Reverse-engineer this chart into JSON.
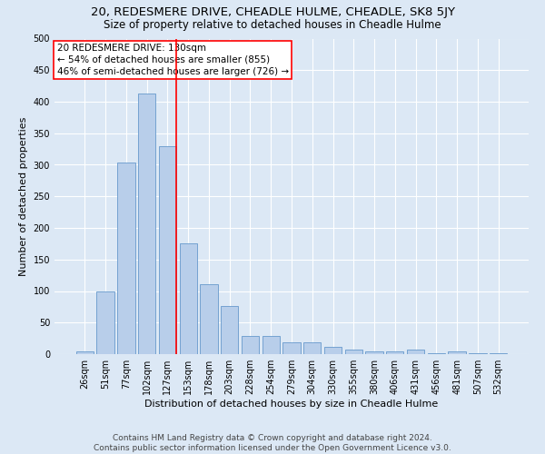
{
  "title": "20, REDESMERE DRIVE, CHEADLE HULME, CHEADLE, SK8 5JY",
  "subtitle": "Size of property relative to detached houses in Cheadle Hulme",
  "xlabel": "Distribution of detached houses by size in Cheadle Hulme",
  "ylabel": "Number of detached properties",
  "bar_labels": [
    "26sqm",
    "51sqm",
    "77sqm",
    "102sqm",
    "127sqm",
    "153sqm",
    "178sqm",
    "203sqm",
    "228sqm",
    "254sqm",
    "279sqm",
    "304sqm",
    "330sqm",
    "355sqm",
    "380sqm",
    "406sqm",
    "431sqm",
    "456sqm",
    "481sqm",
    "507sqm",
    "532sqm"
  ],
  "bar_values": [
    5,
    99,
    304,
    413,
    330,
    175,
    111,
    76,
    29,
    29,
    18,
    18,
    11,
    7,
    4,
    4,
    7,
    2,
    4,
    2,
    2
  ],
  "bar_color": "#b8ceea",
  "bar_edge_color": "#6699cc",
  "vline_index": 4,
  "annotation_lines": [
    "20 REDESMERE DRIVE: 130sqm",
    "← 54% of detached houses are smaller (855)",
    "46% of semi-detached houses are larger (726) →"
  ],
  "annotation_box_color": "white",
  "annotation_box_edge_color": "red",
  "vline_color": "red",
  "ylim": [
    0,
    500
  ],
  "yticks": [
    0,
    50,
    100,
    150,
    200,
    250,
    300,
    350,
    400,
    450,
    500
  ],
  "footer_line1": "Contains HM Land Registry data © Crown copyright and database right 2024.",
  "footer_line2": "Contains public sector information licensed under the Open Government Licence v3.0.",
  "background_color": "#dce8f5",
  "plot_bg_color": "#dce8f5",
  "grid_color": "white",
  "title_fontsize": 9.5,
  "subtitle_fontsize": 8.5,
  "xlabel_fontsize": 8,
  "ylabel_fontsize": 8,
  "tick_fontsize": 7,
  "footer_fontsize": 6.5,
  "annotation_fontsize": 7.5
}
